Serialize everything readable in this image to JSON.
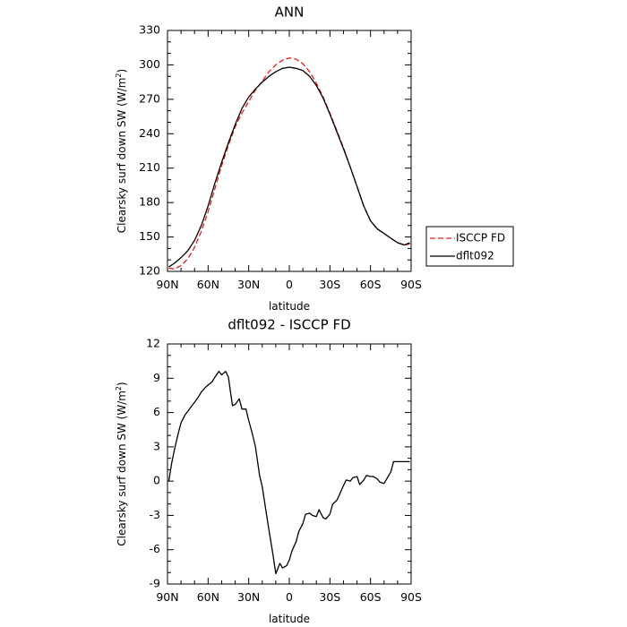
{
  "chart_data": [
    {
      "type": "line",
      "title": "ANN",
      "xlabel": "latitude",
      "ylabel": "Clearsky surf down SW (W/m",
      "ylabel_sup": "2",
      "ylabel_close": ")",
      "xlim": [
        90,
        -90
      ],
      "ylim": [
        120,
        330
      ],
      "xticks": [
        90,
        60,
        30,
        0,
        -30,
        -60,
        -90
      ],
      "xtick_labels": [
        "90N",
        "60N",
        "30N",
        "0",
        "30S",
        "60S",
        "90S"
      ],
      "yticks": [
        120,
        150,
        180,
        210,
        240,
        270,
        300,
        330
      ],
      "ytick_labels": [
        "120",
        "150",
        "180",
        "210",
        "240",
        "270",
        "300",
        "330"
      ],
      "grid": false,
      "legend_position": "outside-right",
      "series": [
        {
          "name": "ISCCP FD",
          "color": "#e41a1c",
          "dash": "dashed",
          "x": [
            89,
            85,
            80,
            75,
            70,
            65,
            60,
            55,
            50,
            45,
            40,
            35,
            30,
            25,
            20,
            15,
            10,
            5,
            0,
            -5,
            -10,
            -15,
            -20,
            -25,
            -30,
            -35,
            -40,
            -45,
            -50,
            -55,
            -60,
            -65,
            -70,
            -75,
            -80,
            -85,
            -89
          ],
          "y": [
            123,
            122,
            125,
            131,
            141,
            155,
            172,
            192,
            212,
            230,
            246,
            258,
            268,
            278,
            286,
            294,
            300,
            304,
            306,
            305,
            301,
            294,
            284,
            272,
            258,
            243,
            228,
            211,
            194,
            177,
            164,
            157,
            153,
            149,
            145,
            143,
            144
          ]
        },
        {
          "name": "dflt092",
          "color": "#000000",
          "dash": "solid",
          "x": [
            89,
            85,
            80,
            75,
            70,
            65,
            60,
            55,
            50,
            45,
            40,
            35,
            30,
            25,
            20,
            15,
            10,
            5,
            0,
            -5,
            -10,
            -15,
            -20,
            -25,
            -30,
            -35,
            -40,
            -45,
            -50,
            -55,
            -60,
            -65,
            -70,
            -75,
            -80,
            -85,
            -89
          ],
          "y": [
            124,
            127,
            132,
            138,
            147,
            160,
            177,
            197,
            215,
            232,
            248,
            262,
            272,
            279,
            285,
            290,
            294,
            297,
            298,
            297,
            295,
            290,
            282,
            271,
            257,
            242,
            227,
            211,
            194,
            177,
            164,
            157,
            153,
            149,
            145,
            143,
            145
          ]
        }
      ]
    },
    {
      "type": "line",
      "title": "dflt092 - ISCCP FD",
      "xlabel": "latitude",
      "ylabel": "Clearsky surf down SW (W/m",
      "ylabel_sup": "2",
      "ylabel_close": ")",
      "xlim": [
        90,
        -90
      ],
      "ylim": [
        -9,
        12
      ],
      "xticks": [
        90,
        60,
        30,
        0,
        -30,
        -60,
        -90
      ],
      "xtick_labels": [
        "90N",
        "60N",
        "30N",
        "0",
        "30S",
        "60S",
        "90S"
      ],
      "yticks": [
        -9,
        -6,
        -3,
        0,
        3,
        6,
        9,
        12
      ],
      "ytick_labels": [
        "-9",
        "-6",
        "-3",
        "0",
        "3",
        "6",
        "9",
        "12"
      ],
      "grid": false,
      "series": [
        {
          "color": "#000000",
          "dash": "solid",
          "x": [
            89,
            87,
            85,
            82,
            80,
            77,
            75,
            72,
            70,
            67,
            65,
            62,
            60,
            57,
            55,
            52,
            50,
            47,
            45,
            42,
            40,
            37,
            35,
            32,
            30,
            27,
            25,
            22,
            20,
            17,
            15,
            12,
            10,
            7,
            5,
            2,
            0,
            -2,
            -5,
            -7,
            -10,
            -12,
            -15,
            -17,
            -20,
            -22,
            -25,
            -27,
            -30,
            -32,
            -35,
            -37,
            -40,
            -42,
            -45,
            -47,
            -50,
            -52,
            -55,
            -57,
            -60,
            -62,
            -65,
            -67,
            -70,
            -72,
            -75,
            -77,
            -80,
            -82,
            -85,
            -87,
            -89
          ],
          "y": [
            0,
            1.5,
            2.7,
            4.2,
            5.1,
            5.8,
            6.1,
            6.6,
            6.9,
            7.4,
            7.8,
            8.2,
            8.4,
            8.7,
            9.1,
            9.6,
            9.3,
            9.6,
            9.1,
            6.6,
            6.7,
            7.2,
            6.3,
            6.3,
            5.3,
            4.0,
            3.0,
            0.5,
            -0.5,
            -2.8,
            -4.3,
            -6.5,
            -8.1,
            -7.2,
            -7.6,
            -7.4,
            -6.9,
            -6.1,
            -5.3,
            -4.4,
            -3.7,
            -2.9,
            -2.8,
            -3.0,
            -3.1,
            -2.5,
            -3.2,
            -3.3,
            -2.9,
            -2.0,
            -1.7,
            -1.2,
            -0.4,
            0.1,
            0.0,
            0.3,
            0.4,
            -0.3,
            0.1,
            0.5,
            0.4,
            0.4,
            0.2,
            -0.1,
            -0.2,
            0.2,
            0.8,
            1.7,
            1.7,
            1.7,
            1.7,
            1.7,
            1.7
          ]
        }
      ]
    }
  ]
}
